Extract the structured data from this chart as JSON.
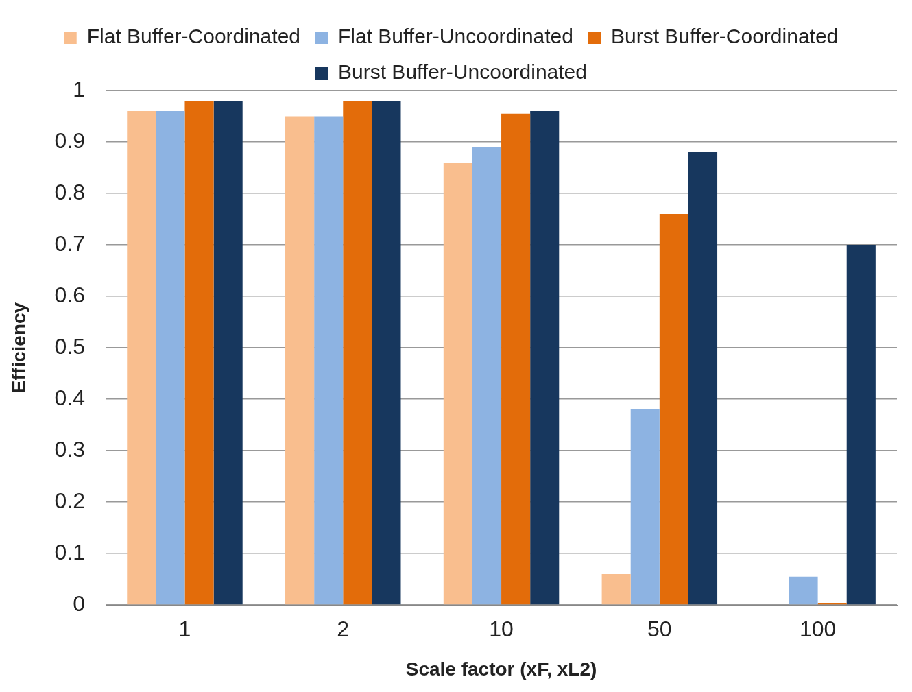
{
  "chart_data": {
    "type": "bar",
    "xlabel": "Scale factor (xF, xL2)",
    "ylabel": "Efficiency",
    "categories": [
      "1",
      "2",
      "10",
      "50",
      "100"
    ],
    "series": [
      {
        "name": "Flat Buffer-Coordinated",
        "color": "#f9be8e",
        "values": [
          0.96,
          0.95,
          0.86,
          0.06,
          0
        ]
      },
      {
        "name": "Flat Buffer-Uncoordinated",
        "color": "#8db3e2",
        "values": [
          0.96,
          0.95,
          0.89,
          0.38,
          0.055
        ]
      },
      {
        "name": "Burst Buffer-Coordinated",
        "color": "#e36c0a",
        "values": [
          0.98,
          0.98,
          0.955,
          0.76,
          0.004
        ]
      },
      {
        "name": "Burst Buffer-Uncoordinated",
        "color": "#17375e",
        "values": [
          0.98,
          0.98,
          0.96,
          0.88,
          0.7
        ]
      }
    ],
    "ylim": [
      0,
      1
    ],
    "yticks": [
      0,
      0.1,
      0.2,
      0.3,
      0.4,
      0.5,
      0.6,
      0.7,
      0.8,
      0.9,
      1
    ],
    "grid": "y",
    "legend": "top"
  }
}
